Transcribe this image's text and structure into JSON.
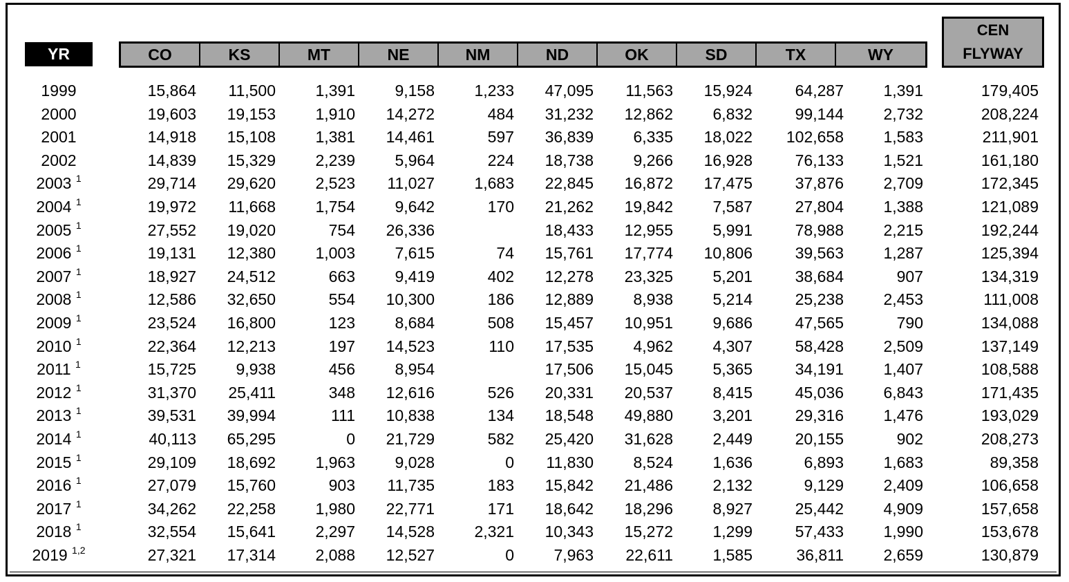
{
  "header": {
    "year_label": "YR",
    "states": [
      "CO",
      "KS",
      "MT",
      "NE",
      "NM",
      "ND",
      "OK",
      "SD",
      "TX",
      "WY"
    ],
    "total_label_line1": "CEN",
    "total_label_line2": "FLYWAY"
  },
  "rows": [
    {
      "year": "1999",
      "note": "",
      "values": [
        "15,864",
        "11,500",
        "1,391",
        "9,158",
        "1,233",
        "47,095",
        "11,563",
        "15,924",
        "64,287",
        "1,391"
      ],
      "total": "179,405"
    },
    {
      "year": "2000",
      "note": "",
      "values": [
        "19,603",
        "19,153",
        "1,910",
        "14,272",
        "484",
        "31,232",
        "12,862",
        "6,832",
        "99,144",
        "2,732"
      ],
      "total": "208,224"
    },
    {
      "year": "2001",
      "note": "",
      "values": [
        "14,918",
        "15,108",
        "1,381",
        "14,461",
        "597",
        "36,839",
        "6,335",
        "18,022",
        "102,658",
        "1,583"
      ],
      "total": "211,901"
    },
    {
      "year": "2002",
      "note": "",
      "values": [
        "14,839",
        "15,329",
        "2,239",
        "5,964",
        "224",
        "18,738",
        "9,266",
        "16,928",
        "76,133",
        "1,521"
      ],
      "total": "161,180"
    },
    {
      "year": "2003",
      "note": "1",
      "values": [
        "29,714",
        "29,620",
        "2,523",
        "11,027",
        "1,683",
        "22,845",
        "16,872",
        "17,475",
        "37,876",
        "2,709"
      ],
      "total": "172,345"
    },
    {
      "year": "2004",
      "note": "1",
      "values": [
        "19,972",
        "11,668",
        "1,754",
        "9,642",
        "170",
        "21,262",
        "19,842",
        "7,587",
        "27,804",
        "1,388"
      ],
      "total": "121,089"
    },
    {
      "year": "2005",
      "note": "1",
      "values": [
        "27,552",
        "19,020",
        "754",
        "26,336",
        "",
        "18,433",
        "12,955",
        "5,991",
        "78,988",
        "2,215"
      ],
      "total": "192,244"
    },
    {
      "year": "2006",
      "note": "1",
      "values": [
        "19,131",
        "12,380",
        "1,003",
        "7,615",
        "74",
        "15,761",
        "17,774",
        "10,806",
        "39,563",
        "1,287"
      ],
      "total": "125,394"
    },
    {
      "year": "2007",
      "note": "1",
      "values": [
        "18,927",
        "24,512",
        "663",
        "9,419",
        "402",
        "12,278",
        "23,325",
        "5,201",
        "38,684",
        "907"
      ],
      "total": "134,319"
    },
    {
      "year": "2008",
      "note": "1",
      "values": [
        "12,586",
        "32,650",
        "554",
        "10,300",
        "186",
        "12,889",
        "8,938",
        "5,214",
        "25,238",
        "2,453"
      ],
      "total": "111,008"
    },
    {
      "year": "2009",
      "note": "1",
      "values": [
        "23,524",
        "16,800",
        "123",
        "8,684",
        "508",
        "15,457",
        "10,951",
        "9,686",
        "47,565",
        "790"
      ],
      "total": "134,088"
    },
    {
      "year": "2010",
      "note": "1",
      "values": [
        "22,364",
        "12,213",
        "197",
        "14,523",
        "110",
        "17,535",
        "4,962",
        "4,307",
        "58,428",
        "2,509"
      ],
      "total": "137,149"
    },
    {
      "year": "2011",
      "note": "1",
      "values": [
        "15,725",
        "9,938",
        "456",
        "8,954",
        "",
        "17,506",
        "15,045",
        "5,365",
        "34,191",
        "1,407"
      ],
      "total": "108,588"
    },
    {
      "year": "2012",
      "note": "1",
      "values": [
        "31,370",
        "25,411",
        "348",
        "12,616",
        "526",
        "20,331",
        "20,537",
        "8,415",
        "45,036",
        "6,843"
      ],
      "total": "171,435"
    },
    {
      "year": "2013",
      "note": "1",
      "values": [
        "39,531",
        "39,994",
        "111",
        "10,838",
        "134",
        "18,548",
        "49,880",
        "3,201",
        "29,316",
        "1,476"
      ],
      "total": "193,029"
    },
    {
      "year": "2014",
      "note": "1",
      "values": [
        "40,113",
        "65,295",
        "0",
        "21,729",
        "582",
        "25,420",
        "31,628",
        "2,449",
        "20,155",
        "902"
      ],
      "total": "208,273"
    },
    {
      "year": "2015",
      "note": "1",
      "values": [
        "29,109",
        "18,692",
        "1,963",
        "9,028",
        "0",
        "11,830",
        "8,524",
        "1,636",
        "6,893",
        "1,683"
      ],
      "total": "89,358"
    },
    {
      "year": "2016",
      "note": "1",
      "values": [
        "27,079",
        "15,760",
        "903",
        "11,735",
        "183",
        "15,842",
        "21,486",
        "2,132",
        "9,129",
        "2,409"
      ],
      "total": "106,658"
    },
    {
      "year": "2017",
      "note": "1",
      "values": [
        "34,262",
        "22,258",
        "1,980",
        "22,771",
        "171",
        "18,642",
        "18,296",
        "8,927",
        "25,442",
        "4,909"
      ],
      "total": "157,658"
    },
    {
      "year": "2018",
      "note": "1",
      "values": [
        "32,554",
        "15,641",
        "2,297",
        "14,528",
        "2,321",
        "10,343",
        "15,272",
        "1,299",
        "57,433",
        "1,990"
      ],
      "total": "153,678"
    },
    {
      "year": "2019",
      "note": "1,2",
      "values": [
        "27,321",
        "17,314",
        "2,088",
        "12,527",
        "0",
        "7,963",
        "22,611",
        "1,585",
        "36,811",
        "2,659"
      ],
      "total": "130,879"
    }
  ]
}
